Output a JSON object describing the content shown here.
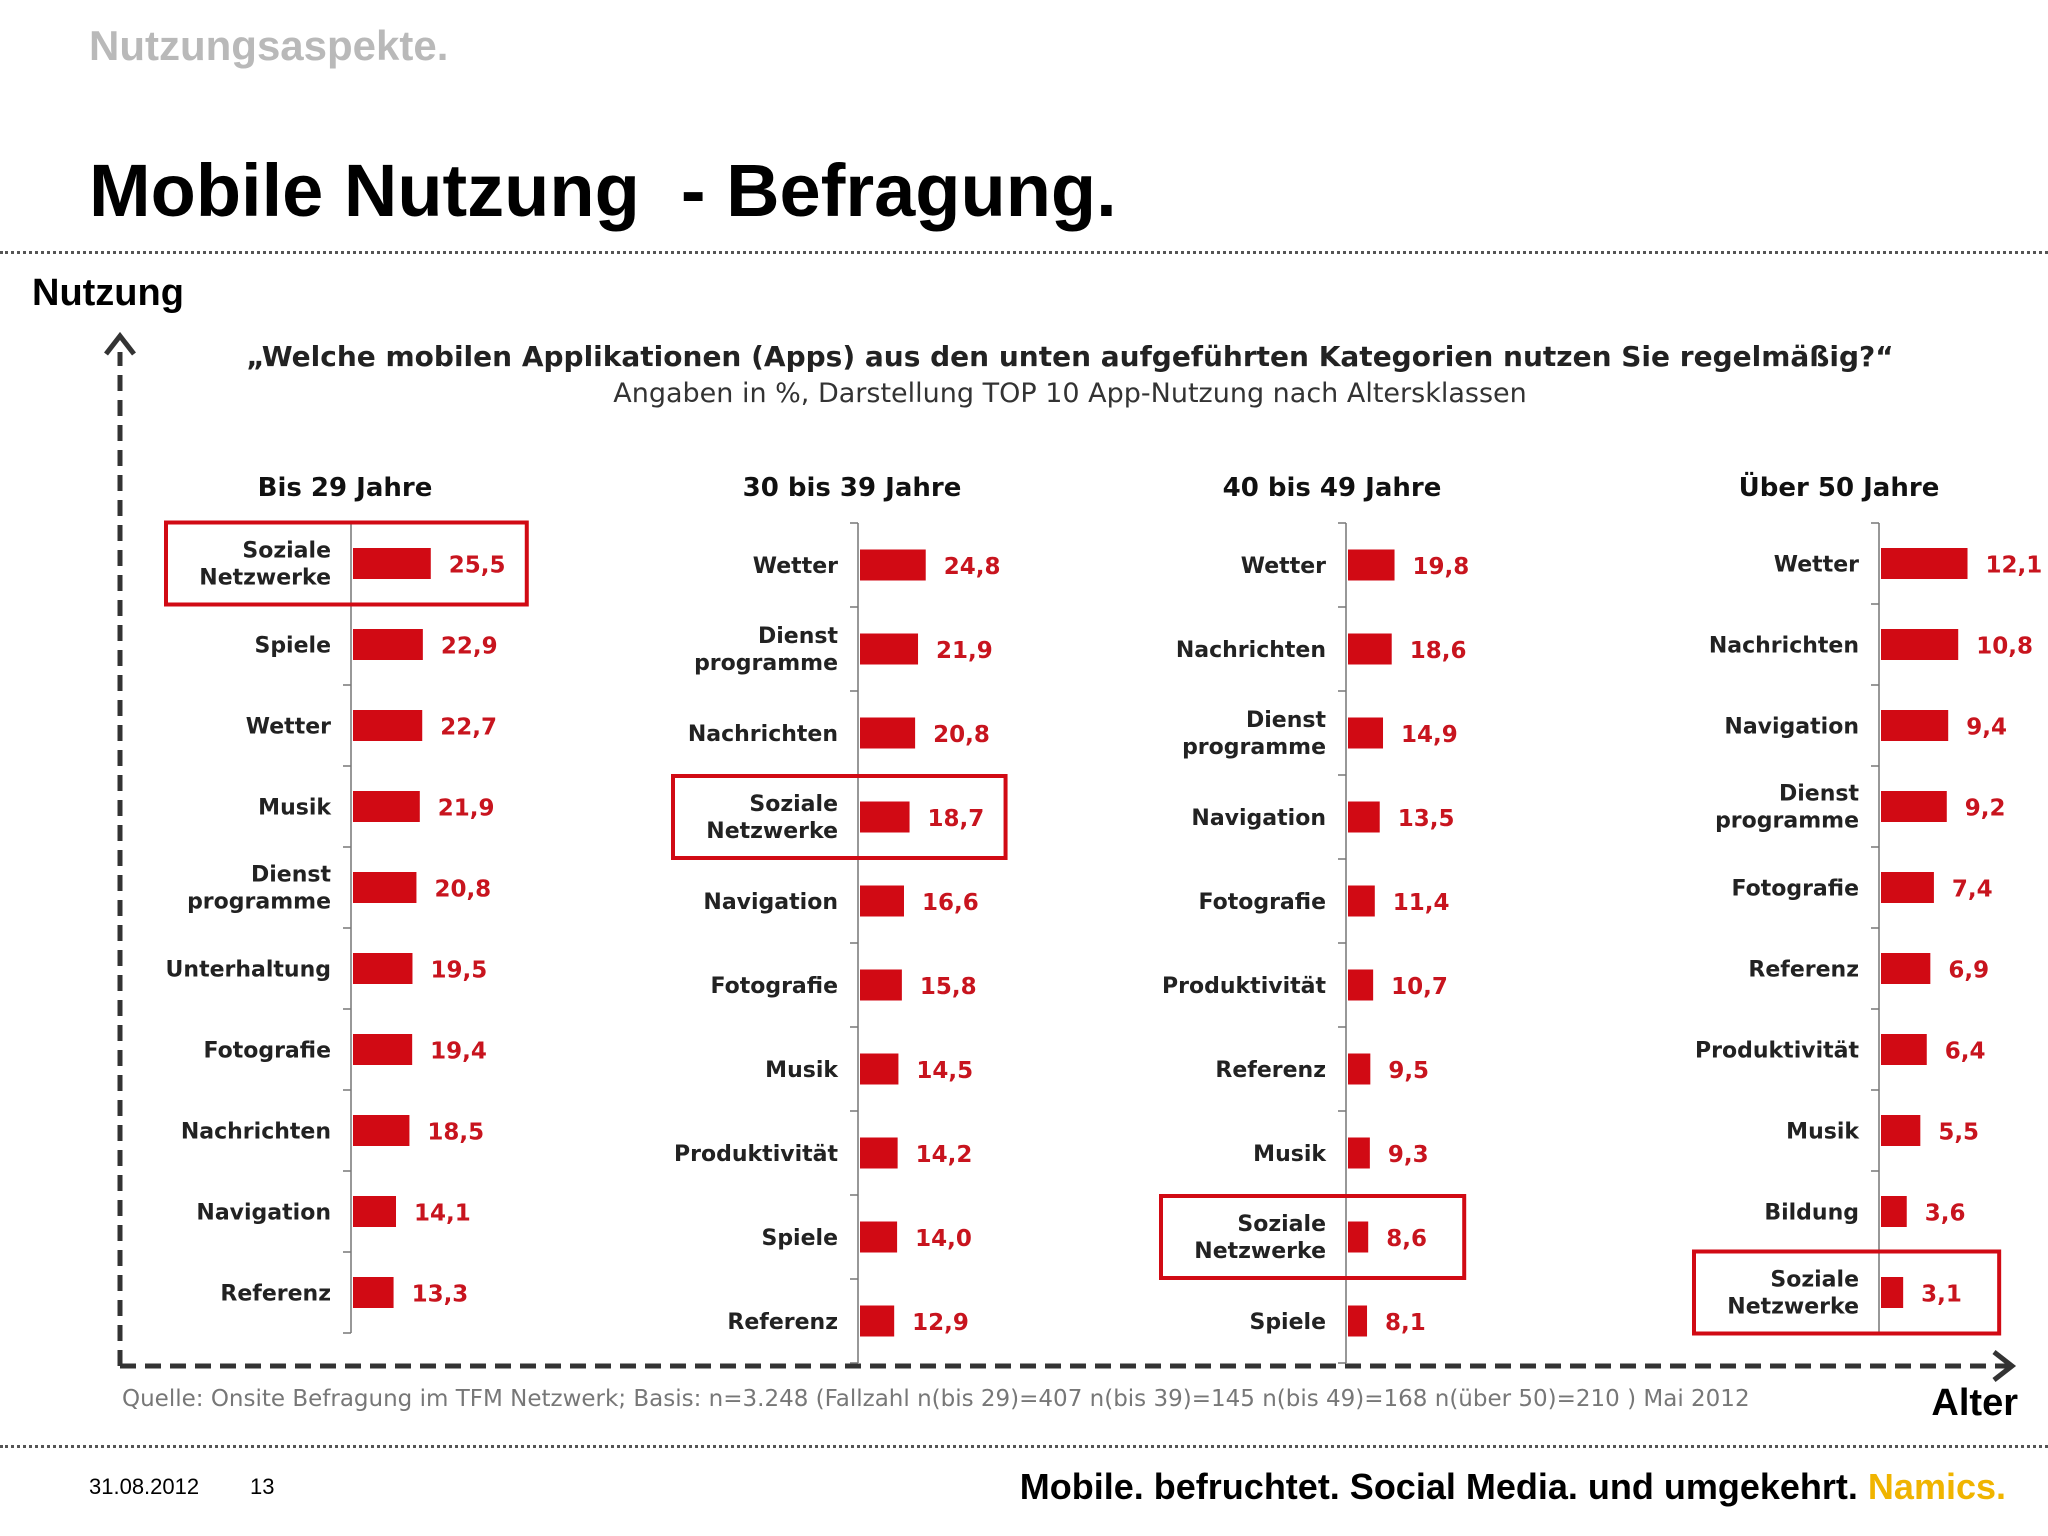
{
  "header": {
    "kicker": "Nutzungsaspekte.",
    "title": "Mobile Nutzung  - Befragung."
  },
  "axes": {
    "y_label": "Nutzung",
    "x_label": "Alter"
  },
  "question": "„Welche mobilen Applikationen (Apps) aus den unten aufgeführten Kategorien nutzen Sie regelmäßig?“",
  "subquestion": "Angaben in %, Darstellung TOP 10 App-Nutzung nach Altersklassen",
  "source": "Quelle: Onsite Befragung im TFM Netzwerk; Basis: n=3.248 (Fallzahl n(bis 29)=407 n(bis 39)=145 n(bis 49)=168 n(über 50)=210 ) Mai 2012",
  "footer": {
    "date": "31.08.2012",
    "page": "13",
    "slogan": "Mobile. befruchtet. Social Media. und umgekehrt.",
    "brand": "Namics."
  },
  "colors": {
    "bar": "#d10a14",
    "highlight_box": "#d10a14",
    "brand": "#f0b400"
  },
  "chart_data": [
    {
      "type": "bar",
      "orientation": "horizontal",
      "title": "Bis 29 Jahre",
      "categories": [
        "Soziale\nNetzwerke",
        "Spiele",
        "Wetter",
        "Musik",
        "Dienst\nprogramme",
        "Unterhaltung",
        "Fotografie",
        "Nachrichten",
        "Navigation",
        "Referenz"
      ],
      "values": [
        25.5,
        22.9,
        22.7,
        21.9,
        20.8,
        19.5,
        19.4,
        18.5,
        14.1,
        13.3
      ],
      "value_labels": [
        "25,5",
        "22,9",
        "22,7",
        "21,9",
        "20,8",
        "19,5",
        "19,4",
        "18,5",
        "14,1",
        "13,3"
      ],
      "highlight": "Soziale\nNetzwerke",
      "xlim": [
        0,
        100
      ]
    },
    {
      "type": "bar",
      "orientation": "horizontal",
      "title": "30 bis 39 Jahre",
      "categories": [
        "Wetter",
        "Dienst\nprogramme",
        "Nachrichten",
        "Soziale\nNetzwerke",
        "Navigation",
        "Fotografie",
        "Musik",
        "Produktivität",
        "Spiele",
        "Referenz"
      ],
      "values": [
        24.8,
        21.9,
        20.8,
        18.7,
        16.6,
        15.8,
        14.5,
        14.2,
        14.0,
        12.9
      ],
      "value_labels": [
        "24,8",
        "21,9",
        "20,8",
        "18,7",
        "16,6",
        "15,8",
        "14,5",
        "14,2",
        "14,0",
        "12,9"
      ],
      "highlight": "Soziale\nNetzwerke",
      "xlim": [
        0,
        100
      ]
    },
    {
      "type": "bar",
      "orientation": "horizontal",
      "title": "40 bis 49 Jahre",
      "categories": [
        "Wetter",
        "Nachrichten",
        "Dienst\nprogramme",
        "Navigation",
        "Fotografie",
        "Produktivität",
        "Referenz",
        "Musik",
        "Soziale\nNetzwerke",
        "Spiele"
      ],
      "values": [
        19.8,
        18.6,
        14.9,
        13.5,
        11.4,
        10.7,
        9.5,
        9.3,
        8.6,
        8.1
      ],
      "value_labels": [
        "19,8",
        "18,6",
        "14,9",
        "13,5",
        "11,4",
        "10,7",
        "9,5",
        "9,3",
        "8,6",
        "8,1"
      ],
      "highlight": "Soziale\nNetzwerke",
      "xlim": [
        0,
        100
      ]
    },
    {
      "type": "bar",
      "orientation": "horizontal",
      "title": "Über 50 Jahre",
      "categories": [
        "Wetter",
        "Nachrichten",
        "Navigation",
        "Dienst\nprogramme",
        "Fotografie",
        "Referenz",
        "Produktivität",
        "Musik",
        "Bildung",
        "Soziale\nNetzwerke"
      ],
      "values": [
        12.1,
        10.8,
        9.4,
        9.2,
        7.4,
        6.9,
        6.4,
        5.5,
        3.6,
        3.1
      ],
      "value_labels": [
        "12,1",
        "10,8",
        "9,4",
        "9,2",
        "7,4",
        "6,9",
        "6,4",
        "5,5",
        "3,6",
        "3,1"
      ],
      "highlight": "Soziale\nNetzwerke",
      "xlim": [
        0,
        60
      ]
    }
  ]
}
